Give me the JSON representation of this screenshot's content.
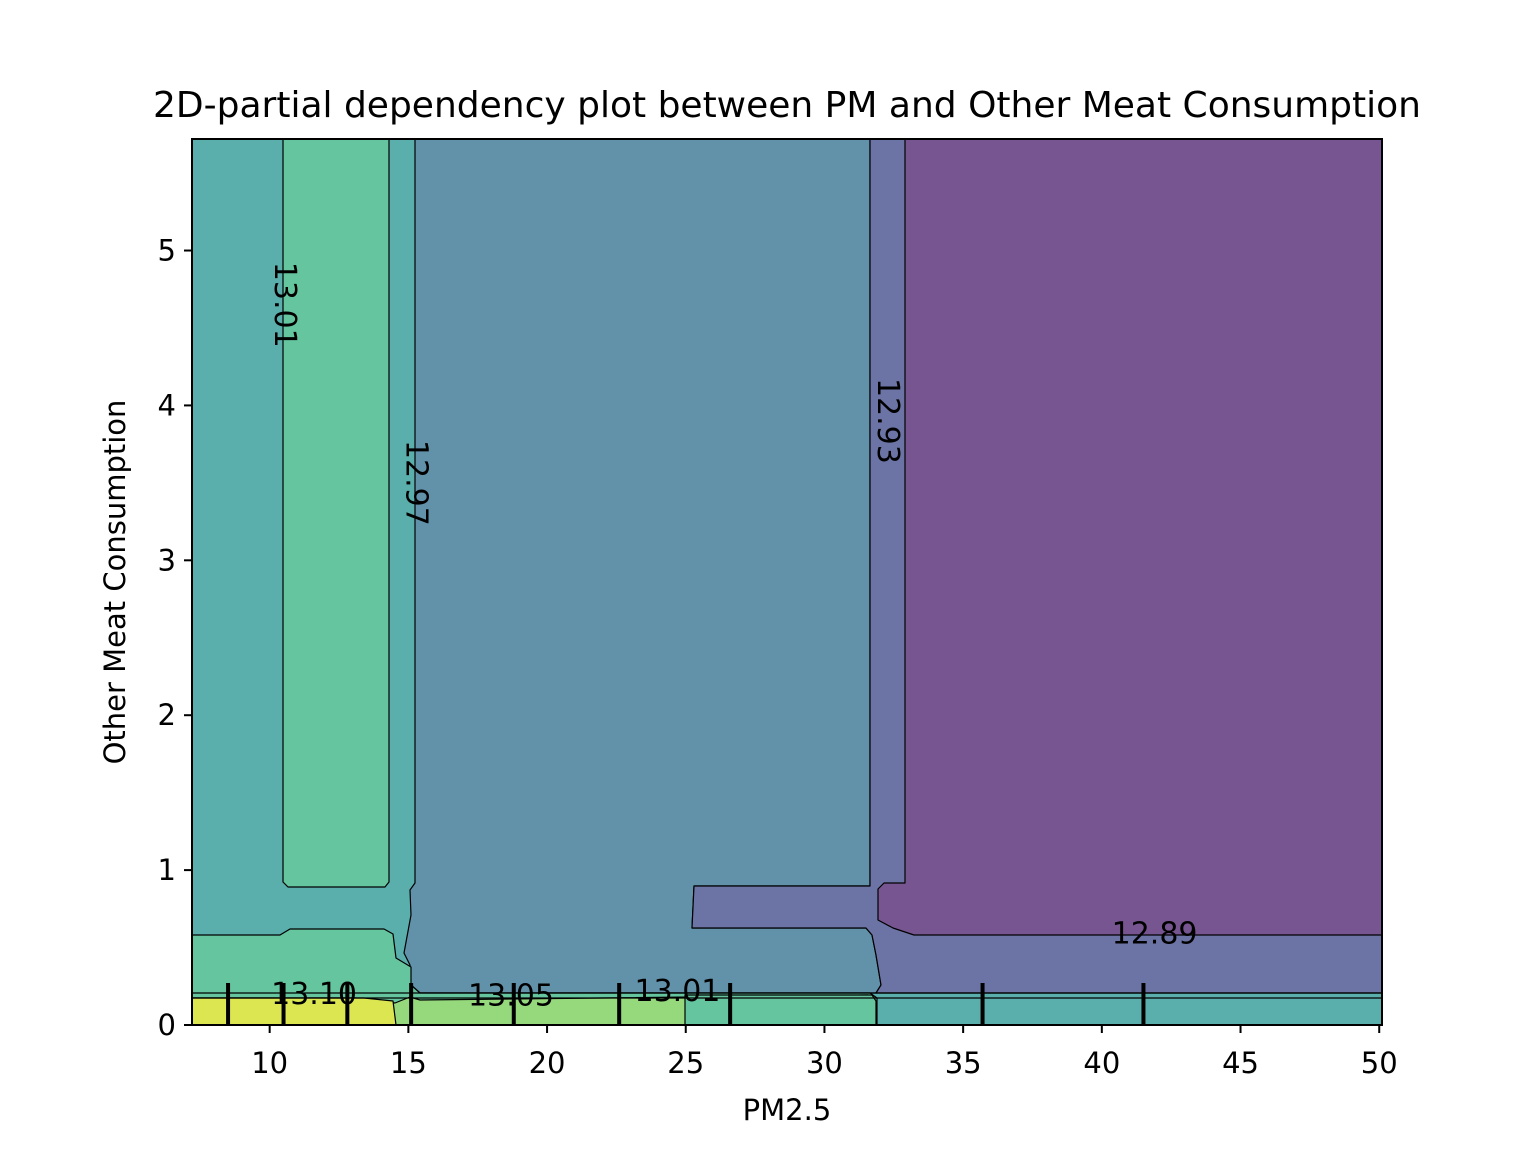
{
  "chart_data": {
    "type": "contour",
    "title": "2D-partial dependency plot between PM and Other Meat Consumption",
    "xlabel": "PM2.5",
    "ylabel": "Other Meat Consumption",
    "xlim": [
      7.2,
      50.1
    ],
    "ylim": [
      0,
      5.72
    ],
    "x_ticks": [
      10,
      15,
      20,
      25,
      30,
      35,
      40,
      45,
      50
    ],
    "y_ticks": [
      0,
      1,
      2,
      3,
      4,
      5
    ],
    "x_tick_labels": [
      "10",
      "15",
      "20",
      "25",
      "30",
      "35",
      "40",
      "45",
      "50"
    ],
    "y_tick_labels": [
      "0",
      "1",
      "2",
      "3",
      "4",
      "5"
    ],
    "colormap": "viridis",
    "levels": [
      12.89,
      12.93,
      12.97,
      13.01,
      13.05,
      13.1
    ],
    "level_colors": {
      "gt_13.10": "#dbe651",
      "13.05_13.10": "#96d97d",
      "13.01_13.05": "#64c59e",
      "12.97_13.01": "#5aaeab",
      "12.93_12.97": "#6292aa",
      "12.89_12.93": "#6c74a6",
      "lt_12.89": "#775590"
    },
    "contour_labels": [
      {
        "text": "13.01",
        "x": 10.55,
        "y": 4.65,
        "rotation": 90
      },
      {
        "text": "12.97",
        "x": 15.3,
        "y": 3.5,
        "rotation": 90
      },
      {
        "text": "12.93",
        "x": 32.3,
        "y": 3.9,
        "rotation": 90
      },
      {
        "text": "12.89",
        "x": 41.9,
        "y": 0.59,
        "rotation": 0
      },
      {
        "text": "13.10",
        "x": 11.6,
        "y": 0.2,
        "rotation": 0
      },
      {
        "text": "13.05",
        "x": 18.7,
        "y": 0.19,
        "rotation": 0
      },
      {
        "text": "13.01",
        "x": 24.7,
        "y": 0.22,
        "rotation": 0
      }
    ],
    "rug_x": [
      8.5,
      10.5,
      12.8,
      15.1,
      18.8,
      22.6,
      26.6,
      35.7,
      41.5
    ]
  }
}
